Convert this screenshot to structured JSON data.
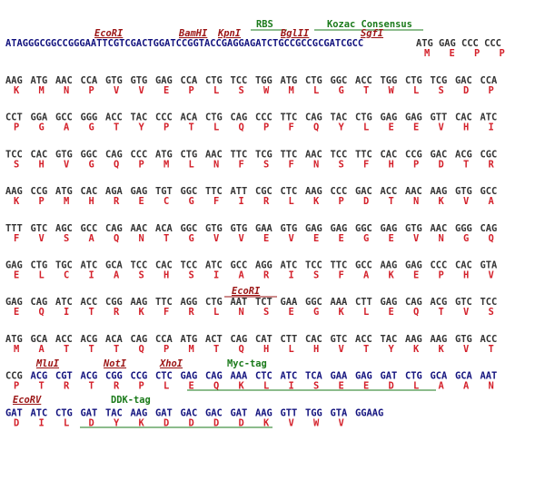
{
  "intro": {
    "dna": "ATAGGGCGGCCGGGAATTCGTCGACTGGATCCGGTACCGAGGAGATCTGCCGCCGCGATCGCC",
    "codon": "ATG GAG CCC CCC",
    "aa": [
      "M",
      "E",
      "P",
      "P"
    ],
    "sites": [
      "EcoRI",
      "BamHI",
      "KpnI",
      "BglII",
      "SgfI"
    ],
    "features": [
      "RBS",
      "Kozac Consensus"
    ]
  },
  "rows": [
    {
      "codons": [
        "AAG",
        "ATG",
        "AAC",
        "CCA",
        "GTG",
        "GTG",
        "GAG",
        "CCA",
        "CTG",
        "TCC",
        "TGG",
        "ATG",
        "CTG",
        "GGC",
        "ACC",
        "TGG",
        "CTG",
        "TCG",
        "GAC",
        "CCA"
      ],
      "aa": [
        "K",
        "M",
        "N",
        "P",
        "V",
        "V",
        "E",
        "P",
        "L",
        "S",
        "W",
        "M",
        "L",
        "G",
        "T",
        "W",
        "L",
        "S",
        "D",
        "P"
      ]
    },
    {
      "codons": [
        "CCT",
        "GGA",
        "GCC",
        "GGG",
        "ACC",
        "TAC",
        "CCC",
        "ACA",
        "CTG",
        "CAG",
        "CCC",
        "TTC",
        "CAG",
        "TAC",
        "CTG",
        "GAG",
        "GAG",
        "GTT",
        "CAC",
        "ATC"
      ],
      "aa": [
        "P",
        "G",
        "A",
        "G",
        "T",
        "Y",
        "P",
        "T",
        "L",
        "Q",
        "P",
        "F",
        "Q",
        "Y",
        "L",
        "E",
        "E",
        "V",
        "H",
        "I"
      ]
    },
    {
      "codons": [
        "TCC",
        "CAC",
        "GTG",
        "GGC",
        "CAG",
        "CCC",
        "ATG",
        "CTG",
        "AAC",
        "TTC",
        "TCG",
        "TTC",
        "AAC",
        "TCC",
        "TTC",
        "CAC",
        "CCG",
        "GAC",
        "ACG",
        "CGC"
      ],
      "aa": [
        "S",
        "H",
        "V",
        "G",
        "Q",
        "P",
        "M",
        "L",
        "N",
        "F",
        "S",
        "F",
        "N",
        "S",
        "F",
        "H",
        "P",
        "D",
        "T",
        "R"
      ]
    },
    {
      "codons": [
        "AAG",
        "CCG",
        "ATG",
        "CAC",
        "AGA",
        "GAG",
        "TGT",
        "GGC",
        "TTC",
        "ATT",
        "CGC",
        "CTC",
        "AAG",
        "CCC",
        "GAC",
        "ACC",
        "AAC",
        "AAG",
        "GTG",
        "GCC"
      ],
      "aa": [
        "K",
        "P",
        "M",
        "H",
        "R",
        "E",
        "C",
        "G",
        "F",
        "I",
        "R",
        "L",
        "K",
        "P",
        "D",
        "T",
        "N",
        "K",
        "V",
        "A"
      ]
    },
    {
      "codons": [
        "TTT",
        "GTC",
        "AGC",
        "GCC",
        "CAG",
        "AAC",
        "ACA",
        "GGC",
        "GTG",
        "GTG",
        "GAA",
        "GTG",
        "GAG",
        "GAG",
        "GGC",
        "GAG",
        "GTG",
        "AAC",
        "GGG",
        "CAG"
      ],
      "aa": [
        "F",
        "V",
        "S",
        "A",
        "Q",
        "N",
        "T",
        "G",
        "V",
        "V",
        "E",
        "V",
        "E",
        "E",
        "G",
        "E",
        "V",
        "N",
        "G",
        "Q"
      ]
    },
    {
      "codons": [
        "GAG",
        "CTG",
        "TGC",
        "ATC",
        "GCA",
        "TCC",
        "CAC",
        "TCC",
        "ATC",
        "GCC",
        "AGG",
        "ATC",
        "TCC",
        "TTC",
        "GCC",
        "AAG",
        "GAG",
        "CCC",
        "CAC",
        "GTA"
      ],
      "aa": [
        "E",
        "L",
        "C",
        "I",
        "A",
        "S",
        "H",
        "S",
        "I",
        "A",
        "R",
        "I",
        "S",
        "F",
        "A",
        "K",
        "E",
        "P",
        "H",
        "V"
      ]
    },
    {
      "codons": [
        "GAG",
        "CAG",
        "ATC",
        "ACC",
        "CGG",
        "AAG",
        "TTC",
        "AGG",
        "CTG",
        "AAT",
        "TCT",
        "GAA",
        "GGC",
        "AAA",
        "CTT",
        "GAG",
        "CAG",
        "ACG",
        "GTC",
        "TCC"
      ],
      "aa": [
        "E",
        "Q",
        "I",
        "T",
        "R",
        "K",
        "F",
        "R",
        "L",
        "N",
        "S",
        "E",
        "G",
        "K",
        "L",
        "E",
        "Q",
        "T",
        "V",
        "S"
      ]
    },
    {
      "codons": [
        "ATG",
        "GCA",
        "ACC",
        "ACG",
        "ACA",
        "CAG",
        "CCA",
        "ATG",
        "ACT",
        "CAG",
        "CAT",
        "CTT",
        "CAC",
        "GTC",
        "ACC",
        "TAC",
        "AAG",
        "AAG",
        "GTG",
        "ACC"
      ],
      "aa": [
        "M",
        "A",
        "T",
        "T",
        "T",
        "Q",
        "P",
        "M",
        "T",
        "Q",
        "H",
        "L",
        "H",
        "V",
        "T",
        "Y",
        "K",
        "K",
        "V",
        "T"
      ]
    },
    {
      "codons": [
        "CCG",
        "ACG",
        "CGT",
        "ACG",
        "CGG",
        "CCG",
        "CTC",
        "GAG",
        "CAG",
        "AAA",
        "CTC",
        "ATC",
        "TCA",
        "GAA",
        "GAG",
        "GAT",
        "CTG",
        "GCA",
        "GCA",
        "AAT"
      ],
      "aa": [
        "P",
        "T",
        "R",
        "T",
        "R",
        "P",
        "L",
        "E",
        "Q",
        "K",
        "L",
        "I",
        "S",
        "E",
        "E",
        "D",
        "L",
        "A",
        "A",
        "N"
      ]
    },
    {
      "codons": [
        "GAT",
        "ATC",
        "CTG",
        "GAT",
        "TAC",
        "AAG",
        "GAT",
        "GAC",
        "GAC",
        "GAT",
        "AAG",
        "GTT",
        "TGG",
        "GTA",
        "GGAAG"
      ],
      "aa": [
        "D",
        "I",
        "L",
        "D",
        "Y",
        "K",
        "D",
        "D",
        "D",
        "D",
        "K",
        "V",
        "W",
        "V"
      ]
    }
  ],
  "annotations": {
    "EcoRI_2": "EcoRI",
    "MluI": "MluI",
    "NotI": "NotI",
    "XhoI": "XhoI",
    "Myc": "Myc-tag",
    "EcoRV": "EcoRV",
    "DDK": "DDK-tag"
  },
  "colors": {
    "dna": "#333333",
    "dna_highlight": "#12127e",
    "amino_acid": "#d4202a",
    "restriction_site": "#9b1414",
    "feature": "#1a7a1a"
  }
}
